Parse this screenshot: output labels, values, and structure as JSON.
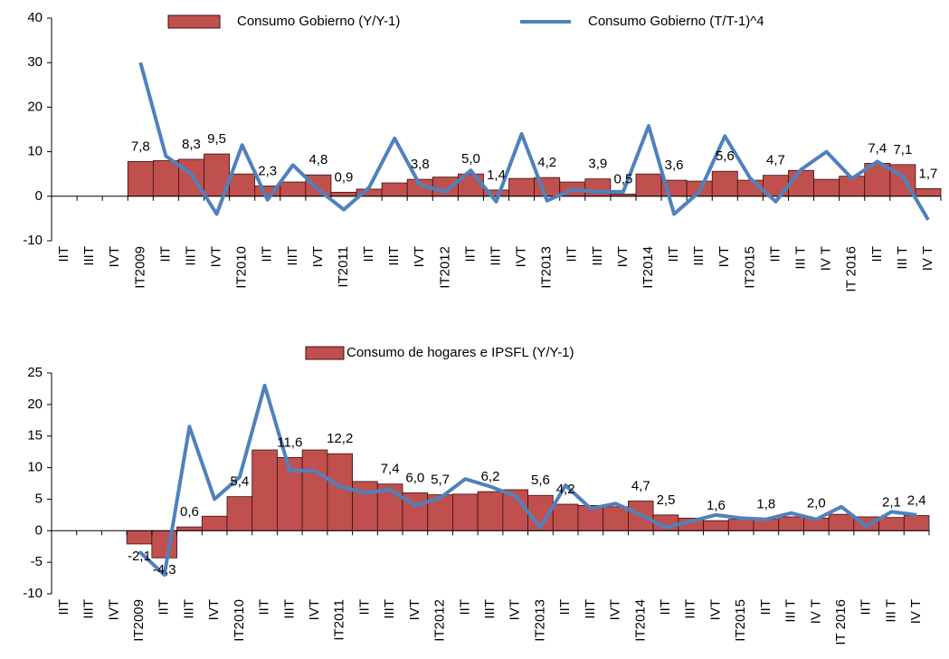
{
  "chart_data": [
    {
      "type": "bar_line",
      "categories": [
        "IIT",
        "IIIT",
        "IVT",
        "IT2009",
        "IIT",
        "IIIT",
        "IVT",
        "IT2010",
        "IIT",
        "IIIT",
        "IVT",
        "IT2011",
        "IIT",
        "IIIT",
        "IVT",
        "IT2012",
        "IIT",
        "IIIT",
        "IVT",
        "IT2013",
        "IIT",
        "IIIT",
        "IVT",
        "IT2014",
        "IIT",
        "IIIT",
        "IVT",
        "IT2015",
        "IIT",
        "III T",
        "IV T",
        "IT 2016",
        "IIT",
        "III T",
        "IV T"
      ],
      "series": [
        {
          "name": "Consumo Gobierno (Y/Y-1)",
          "kind": "bar",
          "color": "#c0504d",
          "values": [
            null,
            null,
            null,
            7.8,
            8.0,
            8.3,
            9.5,
            5.0,
            2.3,
            3.2,
            4.8,
            0.9,
            1.6,
            3.0,
            3.8,
            4.3,
            5.0,
            1.4,
            4.0,
            4.2,
            3.2,
            3.9,
            0.5,
            5.0,
            3.6,
            3.4,
            5.6,
            3.6,
            4.7,
            5.8,
            3.8,
            4.5,
            7.4,
            7.1,
            1.7
          ],
          "value_labels": [
            null,
            null,
            null,
            "7,8",
            null,
            "8,3",
            "9,5",
            null,
            "2,3",
            null,
            "4,8",
            "0,9",
            null,
            null,
            "3,8",
            null,
            "5,0",
            "1,4",
            null,
            "4,2",
            null,
            "3,9",
            "0,5",
            null,
            "3,6",
            null,
            "5,6",
            null,
            "4,7",
            null,
            null,
            null,
            "7,4",
            "7,1",
            "1,7"
          ]
        },
        {
          "name": "Consumo Gobierno (T/T-1)^4",
          "kind": "line",
          "color": "#4f81bd",
          "values": [
            null,
            null,
            null,
            30,
            9,
            5,
            -4,
            11.5,
            -0.8,
            7,
            1.5,
            -3,
            2,
            13,
            2.5,
            1,
            5.8,
            -1.2,
            14,
            -1,
            1.5,
            1,
            1,
            15.8,
            -4,
            1,
            13.5,
            4,
            -1.2,
            6,
            10,
            4,
            7.8,
            4.5,
            -5.3
          ]
        }
      ],
      "ylim": [
        -10,
        40
      ],
      "yticks": [
        -10,
        0,
        10,
        20,
        30,
        40
      ],
      "legend": "top"
    },
    {
      "type": "bar_line",
      "categories": [
        "IIT",
        "IIIT",
        "IVT",
        "IT2009",
        "IIT",
        "IIIT",
        "IVT",
        "IT2010",
        "IIT",
        "IIIT",
        "IVT",
        "IT2011",
        "IIT",
        "IIIT",
        "IVT",
        "IT2012",
        "IIT",
        "IIIT",
        "IVT",
        "IT2013",
        "IIT",
        "IIIT",
        "IVT",
        "IT2014",
        "IIT",
        "IIIT",
        "IVT",
        "IT2015",
        "IIT",
        "III T",
        "IV T",
        "IT 2016",
        "IIT",
        "III T",
        "IV T"
      ],
      "series": [
        {
          "name": "Consumo de hogares e IPSFL (Y/Y-1)",
          "kind": "bar",
          "color": "#c0504d",
          "values": [
            null,
            null,
            null,
            -2.1,
            -4.3,
            0.6,
            2.3,
            5.4,
            12.8,
            11.6,
            12.8,
            12.2,
            7.8,
            7.4,
            6.0,
            5.7,
            5.8,
            6.2,
            6.5,
            5.6,
            4.2,
            4.0,
            3.8,
            4.7,
            2.5,
            2.0,
            1.6,
            1.8,
            1.8,
            2.2,
            2.0,
            2.6,
            2.2,
            2.1,
            2.4
          ],
          "value_labels": [
            null,
            null,
            null,
            "-2,1",
            "-4,3",
            "0,6",
            null,
            "5,4",
            null,
            "11,6",
            null,
            "12,2",
            null,
            "7,4",
            "6,0",
            "5,7",
            null,
            "6,2",
            null,
            "5,6",
            "4,2",
            null,
            null,
            "4,7",
            "2,5",
            null,
            "1,6",
            null,
            "1,8",
            null,
            "2,0",
            null,
            null,
            "2,1",
            "2,4"
          ]
        },
        {
          "kind": "line",
          "color": "#4f81bd",
          "values": [
            null,
            null,
            null,
            -3.3,
            -7,
            16.5,
            5,
            8.5,
            23,
            9.5,
            9.5,
            7,
            6,
            6.5,
            4,
            5.2,
            8.2,
            7,
            5.5,
            0.5,
            7.2,
            3.5,
            4.3,
            2.5,
            0.5,
            1.5,
            2.5,
            2,
            1.8,
            2.8,
            1.8,
            3.8,
            0.7,
            3,
            2.5
          ]
        }
      ],
      "ylim": [
        -10,
        25
      ],
      "yticks": [
        -10,
        -5,
        0,
        5,
        10,
        15,
        20,
        25
      ],
      "legend": "top"
    }
  ]
}
